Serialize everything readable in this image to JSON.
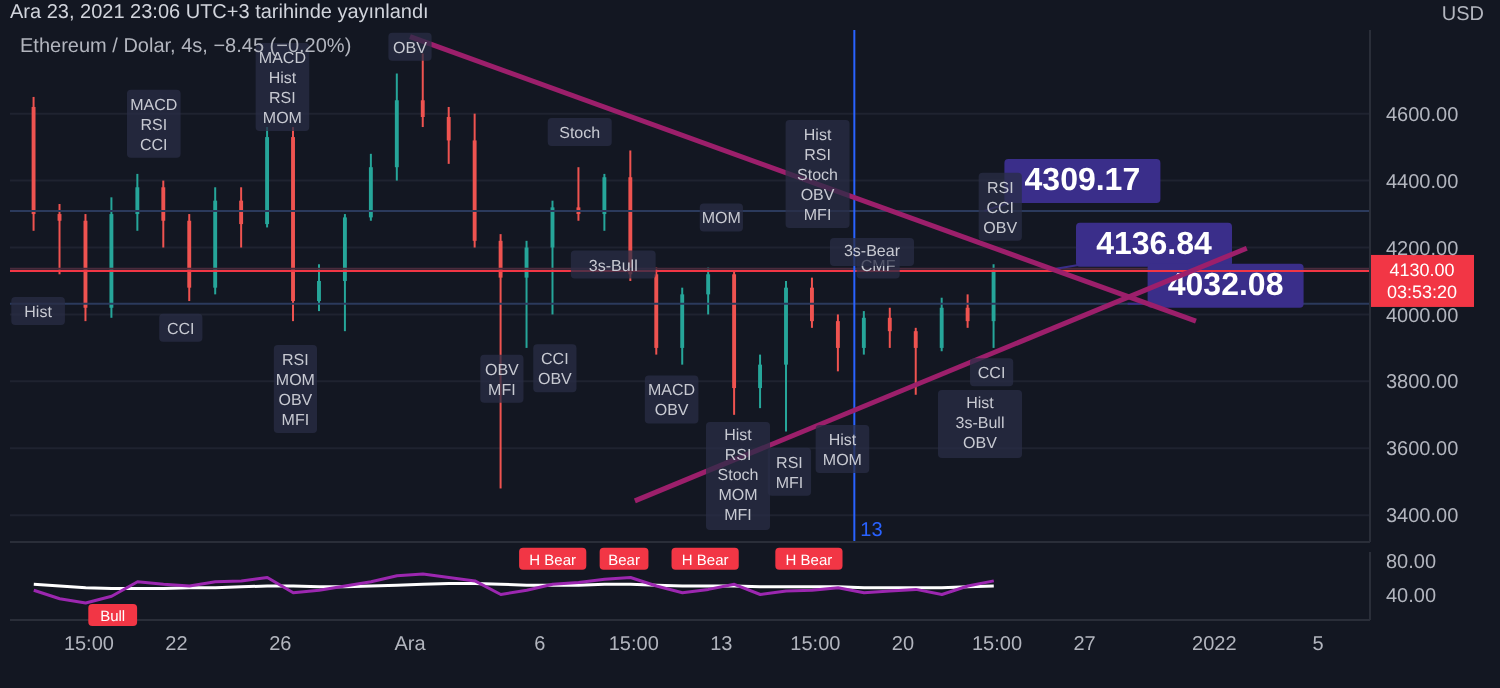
{
  "chart_data": [
    {
      "type": "candlestick",
      "title": "Ethereum / Dolar, 4s, −8.45 (−0.20%)",
      "subtitle": "Ara 23, 2021 23:06 UTC+3 tarihinde yayınlandı",
      "ylabel": "USD",
      "x": [
        "2021-11-16T12:00",
        "2021-11-17T12:00",
        "2021-11-18T12:00",
        "2021-11-19T12:00",
        "2021-11-20T12:00",
        "2021-11-21T12:00",
        "2021-11-22T12:00",
        "2021-11-23T12:00",
        "2021-11-24T12:00",
        "2021-11-25T12:00",
        "2021-11-26T12:00",
        "2021-11-27T12:00",
        "2021-11-28T12:00",
        "2021-11-29T12:00",
        "2021-11-30T12:00",
        "2021-12-01T12:00",
        "2021-12-02T12:00",
        "2021-12-03T12:00",
        "2021-12-04T12:00",
        "2021-12-05T12:00",
        "2021-12-06T12:00",
        "2021-12-07T12:00",
        "2021-12-08T12:00",
        "2021-12-09T12:00",
        "2021-12-10T12:00",
        "2021-12-11T12:00",
        "2021-12-12T12:00",
        "2021-12-13T12:00",
        "2021-12-14T12:00",
        "2021-12-15T12:00",
        "2021-12-16T12:00",
        "2021-12-17T12:00",
        "2021-12-18T12:00",
        "2021-12-19T12:00",
        "2021-12-20T12:00",
        "2021-12-21T12:00",
        "2021-12-22T12:00",
        "2021-12-23T12:00"
      ],
      "ohlc": [
        [
          4620,
          4650,
          4250,
          4300
        ],
        [
          4300,
          4330,
          4120,
          4280
        ],
        [
          4280,
          4300,
          3980,
          4020
        ],
        [
          4020,
          4350,
          3990,
          4300
        ],
        [
          4300,
          4420,
          4250,
          4380
        ],
        [
          4380,
          4400,
          4200,
          4280
        ],
        [
          4280,
          4300,
          4040,
          4080
        ],
        [
          4080,
          4380,
          4060,
          4340
        ],
        [
          4340,
          4380,
          4200,
          4270
        ],
        [
          4270,
          4560,
          4260,
          4530
        ],
        [
          4530,
          4560,
          3980,
          4040
        ],
        [
          4040,
          4150,
          4010,
          4100
        ],
        [
          4100,
          4300,
          3950,
          4290
        ],
        [
          4290,
          4480,
          4280,
          4440
        ],
        [
          4440,
          4720,
          4400,
          4640
        ],
        [
          4640,
          4780,
          4560,
          4590
        ],
        [
          4590,
          4620,
          4450,
          4520
        ],
        [
          4520,
          4600,
          4200,
          4220
        ],
        [
          4220,
          4240,
          3480,
          4110
        ],
        [
          4110,
          4220,
          3900,
          4200
        ],
        [
          4200,
          4340,
          4000,
          4320
        ],
        [
          4320,
          4440,
          4280,
          4300
        ],
        [
          4300,
          4420,
          4250,
          4410
        ],
        [
          4410,
          4490,
          4100,
          4120
        ],
        [
          4120,
          4140,
          3880,
          3900
        ],
        [
          3900,
          4080,
          3850,
          4060
        ],
        [
          4060,
          4140,
          4000,
          4120
        ],
        [
          4120,
          4130,
          3700,
          3780
        ],
        [
          3780,
          3880,
          3720,
          3850
        ],
        [
          3850,
          4100,
          3650,
          4080
        ],
        [
          4080,
          4110,
          3960,
          3980
        ],
        [
          3980,
          4000,
          3830,
          3900
        ],
        [
          3900,
          4010,
          3880,
          3990
        ],
        [
          3990,
          4020,
          3900,
          3950
        ],
        [
          3950,
          3960,
          3760,
          3900
        ],
        [
          3900,
          4050,
          3890,
          4020
        ],
        [
          4020,
          4060,
          3960,
          3980
        ],
        [
          3980,
          4150,
          3900,
          4130
        ]
      ],
      "colors": [
        "#ef5350",
        "#ef5350",
        "#ef5350",
        "#26a69a",
        "#26a69a",
        "#ef5350",
        "#ef5350",
        "#26a69a",
        "#ef5350",
        "#26a69a",
        "#ef5350",
        "#26a69a",
        "#26a69a",
        "#26a69a",
        "#26a69a",
        "#ef5350",
        "#ef5350",
        "#ef5350",
        "#ef5350",
        "#26a69a",
        "#26a69a",
        "#ef5350",
        "#26a69a",
        "#ef5350",
        "#ef5350",
        "#26a69a",
        "#26a69a",
        "#ef5350",
        "#26a69a",
        "#26a69a",
        "#ef5350",
        "#ef5350",
        "#26a69a",
        "#ef5350",
        "#ef5350",
        "#26a69a",
        "#ef5350",
        "#26a69a"
      ],
      "series": [
        {
          "type": "line",
          "color": "#9c1f6b",
          "x": [
            "2021-12-01",
            "2021-12-31T07:00"
          ],
          "values": [
            4830,
            3980
          ]
        },
        {
          "type": "line",
          "color": "#9c1f6b",
          "x": [
            "2021-12-09T16:00",
            "2022-01-02T06:00"
          ],
          "values": [
            3443,
            4198
          ]
        }
      ],
      "xlim": [
        "2021-11-15T14:00",
        "2022-01-07"
      ],
      "xticks": [
        {
          "value": "2021-11-18T15:00",
          "label": null
        },
        {
          "value": "2021-11-22",
          "label": null
        },
        {
          "value": "2021-11-26",
          "label": null
        },
        {
          "value": "2021-12-01",
          "label": null
        },
        {
          "value": "2021-12-06",
          "label": null
        },
        {
          "value": "2021-12-09T15:00",
          "label": null
        },
        {
          "value": "2021-12-13",
          "label": null
        },
        {
          "value": "2021-12-16T15:00",
          "label": null
        },
        {
          "value": "2021-12-20",
          "label": null
        },
        {
          "value": "2021-12-23T15:00",
          "label": null
        },
        {
          "value": "2021-12-27",
          "label": null
        },
        {
          "value": "2022-01-01",
          "label": null
        },
        {
          "value": "2022-01-05",
          "label": null
        }
      ],
      "ylim": [
        3320,
        4850
      ],
      "yticks": [
        {
          "value": 3400,
          "label": "3400.00"
        },
        {
          "value": 3600,
          "label": "3600.00"
        },
        {
          "value": 3800,
          "label": "3800.00"
        },
        {
          "value": 4000,
          "label": "4000.00"
        },
        {
          "value": 4200,
          "label": "4200.00"
        },
        {
          "value": 4400,
          "label": "4400.00"
        },
        {
          "value": 4600,
          "label": "4600.00"
        }
      ],
      "tick_labels": "y",
      "grid": true,
      "marker": "none",
      "line_style": "solid",
      "ref_lines": [
        {
          "axis": "y",
          "value": 4309.17,
          "label": "4309.17",
          "color": "#2b3a5c"
        },
        {
          "axis": "y",
          "value": 4136.84,
          "label": "4136.84",
          "color": "#4a2b3c"
        },
        {
          "axis": "y",
          "value": 4032.08,
          "label": "4032.08",
          "color": "#2b3a5c"
        },
        {
          "axis": "y",
          "value": 4130,
          "label": "4130.00\n03:53:20",
          "color": "#f23645"
        },
        {
          "axis": "x",
          "value": "2021-12-18T03:00",
          "label": "13",
          "color": "#2962ff"
        }
      ],
      "annotations": [
        {
          "text": "MACD\nRSI\nCCI",
          "x": "2021-11-21T03:00",
          "y": 4570
        },
        {
          "text": "MACD\nHist\nRSI\nMOM",
          "x": "2021-11-26T02:00",
          "y": 4680
        },
        {
          "text": "Hist",
          "x": "2021-11-16T16:00",
          "y": 4010
        },
        {
          "text": "CCI",
          "x": "2021-11-22T04:00",
          "y": 3960
        },
        {
          "text": "RSI\nMOM\nOBV\nMFI",
          "x": "2021-11-26T14:00",
          "y": 3777
        },
        {
          "text": "OBV",
          "x": "2021-12-01",
          "y": 4800
        },
        {
          "text": "OBV\nMFI",
          "x": "2021-12-04T13:00",
          "y": 3808
        },
        {
          "text": "CCI\nOBV",
          "x": "2021-12-06T14:00",
          "y": 3839
        },
        {
          "text": "Stoch",
          "x": "2021-12-07T13:00",
          "y": 4545
        },
        {
          "text": "3s-Bull",
          "x": "2021-12-08T20:00",
          "y": 4149
        },
        {
          "text": "MACD\nOBV",
          "x": "2021-12-11T02:00",
          "y": 3746
        },
        "Hist\nRSI\nStoch\nMOM\nMFI",
        {
          "text": "MOM",
          "x": "2021-12-13",
          "y": 4290
        },
        {
          "text": "RSI\nMFI",
          "x": "2021-12-15T15:00",
          "y": 3530
        },
        {
          "text": "Hist\nRSI\nStoch\nOBV\nMFI",
          "x": "2021-12-16T17:00",
          "y": 4420
        },
        "3s-Bear",
        {
          "text": "Hist\nMOM",
          "x": "2021-12-17T16:00",
          "y": 3598
        },
        {
          "text": "CMF",
          "x": "2021-12-19T01:00",
          "y": 4149
        },
        "Hist\n3s-Bull\nOBV",
        {
          "text": "RSI\nCCI\nOBV",
          "x": "2021-12-23T18:00",
          "y": 4322
        },
        {
          "text": "CCI",
          "x": "2021-12-23T10:00",
          "y": 3827
        }
      ]
    },
    {
      "type": "line",
      "marker": "none",
      "line_style": "solid",
      "grid": false,
      "x": [
        "2021-11-16T12:00",
        "2021-11-17T12:00",
        "2021-11-18T12:00",
        "2021-11-19T12:00",
        "2021-11-20T12:00",
        "2021-11-21T12:00",
        "2021-11-22T12:00",
        "2021-11-23T12:00",
        "2021-11-24T12:00",
        "2021-11-25T12:00",
        "2021-11-26T12:00",
        "2021-11-27T12:00",
        "2021-11-28T12:00",
        "2021-11-29T12:00",
        "2021-11-30T12:00",
        "2021-12-01T12:00",
        "2021-12-02T12:00",
        "2021-12-03T12:00",
        "2021-12-04T12:00",
        "2021-12-05T12:00",
        "2021-12-06T12:00",
        "2021-12-07T12:00",
        "2021-12-08T12:00",
        "2021-12-09T12:00",
        "2021-12-10T12:00",
        "2021-12-11T12:00",
        "2021-12-12T12:00",
        "2021-12-13T12:00",
        "2021-12-14T12:00",
        "2021-12-15T12:00",
        "2021-12-16T12:00",
        "2021-12-17T12:00",
        "2021-12-18T12:00",
        "2021-12-19T12:00",
        "2021-12-20T12:00",
        "2021-12-21T12:00",
        "2021-12-22T12:00",
        "2021-12-23T12:00"
      ],
      "series": [
        {
          "color": "#ffffff",
          "values": [
            52,
            50,
            48,
            47,
            47,
            47,
            48,
            48,
            49,
            50,
            50,
            49,
            49,
            50,
            51,
            52,
            53,
            53,
            52,
            51,
            51,
            51,
            52,
            52,
            51,
            50,
            50,
            50,
            49,
            49,
            49,
            49,
            48,
            48,
            48,
            48,
            49,
            50
          ]
        },
        {
          "color": "#9c27b0",
          "values": [
            45,
            35,
            30,
            38,
            55,
            52,
            50,
            55,
            56,
            60,
            42,
            45,
            50,
            55,
            62,
            64,
            60,
            56,
            40,
            45,
            52,
            54,
            58,
            60,
            50,
            42,
            46,
            52,
            40,
            44,
            45,
            48,
            42,
            44,
            46,
            40,
            50,
            56
          ]
        }
      ],
      "xlim": [
        "2021-11-15T14:00",
        "2022-01-07"
      ],
      "xticks": [
        {
          "value": "2021-11-18T15:00",
          "label": "15:00"
        },
        {
          "value": "2021-11-22",
          "label": "22"
        },
        {
          "value": "2021-11-26",
          "label": "26"
        },
        {
          "value": "2021-12-01",
          "label": "Ara"
        },
        {
          "value": "2021-12-06",
          "label": "6"
        },
        {
          "value": "2021-12-09T15:00",
          "label": "15:00"
        },
        {
          "value": "2021-12-13",
          "label": "13"
        },
        {
          "value": "2021-12-16T15:00",
          "label": "15:00"
        },
        {
          "value": "2021-12-20",
          "label": "20"
        },
        {
          "value": "2021-12-23T15:00",
          "label": "15:00"
        },
        {
          "value": "2021-12-27",
          "label": "27"
        },
        {
          "value": "2022-01-01",
          "label": "2022"
        },
        {
          "value": "2022-01-05",
          "label": "5"
        }
      ],
      "ylim": [
        10,
        90
      ],
      "yticks": [
        {
          "value": 40,
          "label": "40.00"
        },
        {
          "value": 80,
          "label": "80.00"
        }
      ],
      "annotations": [
        {
          "text": "Bull",
          "x": "2021-11-19T13:00",
          "y": 16
        },
        {
          "text": "H Bear",
          "x": "2021-12-06T12:00",
          "y": 82
        },
        {
          "text": "Bear",
          "x": "2021-12-09T06:00",
          "y": 82
        },
        {
          "text": "H Bear",
          "x": "2021-12-12T09:00",
          "y": 82
        },
        {
          "text": "H Bear",
          "x": "2021-12-16T09:00",
          "y": 82
        }
      ]
    }
  ]
}
